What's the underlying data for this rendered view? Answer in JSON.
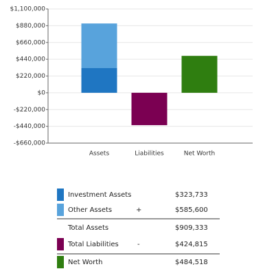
{
  "chart_data": {
    "type": "bar",
    "stacked": true,
    "categories": [
      "Assets",
      "Liabilities",
      "Net Worth"
    ],
    "series": [
      {
        "name": "Investment Assets",
        "color": "#1f76c2",
        "values": [
          323733,
          null,
          null
        ]
      },
      {
        "name": "Other Assets",
        "color": "#58a3dc",
        "values": [
          585600,
          null,
          null
        ]
      },
      {
        "name": "Total Liabilities",
        "color": "#7b0052",
        "values": [
          null,
          -424815,
          null
        ]
      },
      {
        "name": "Net Worth",
        "color": "#2f7e10",
        "values": [
          null,
          null,
          484518
        ]
      }
    ],
    "ylim": [
      -660000,
      1100000
    ],
    "yticks": [
      {
        "value": -660000,
        "label": "-$660,000"
      },
      {
        "value": -440000,
        "label": "-$440,000"
      },
      {
        "value": -220000,
        "label": "-$220,000"
      },
      {
        "value": 0,
        "label": "$0"
      },
      {
        "value": 220000,
        "label": "$220,000"
      },
      {
        "value": 440000,
        "label": "$440,000"
      },
      {
        "value": 660000,
        "label": "$660,000"
      },
      {
        "value": 880000,
        "label": "$880,000"
      },
      {
        "value": 1100000,
        "label": "$1,100,000"
      }
    ],
    "grid": true
  },
  "table": {
    "rows": [
      {
        "amount": "$323,733"
      },
      {
        "sign": "+",
        "amount": "$585,600"
      },
      {
        "label": "Total Assets",
        "amount": "$909,333"
      },
      {
        "sign": "-",
        "amount": "$424,815"
      },
      {
        "amount": "$484,518"
      }
    ]
  }
}
